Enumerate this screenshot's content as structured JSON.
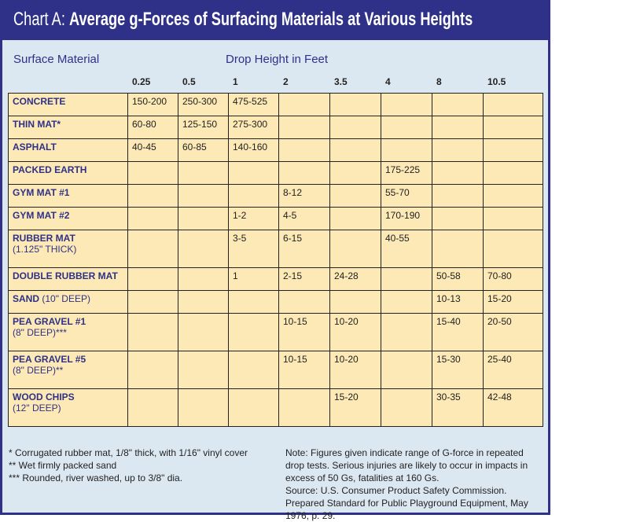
{
  "chart_data": {
    "type": "table",
    "title_prefix": "Chart A:",
    "title": "Average g-Forces of Surfacing Materials at Various Heights",
    "row_header_label": "Surface Material",
    "column_group_label": "Drop Height in Feet",
    "columns": [
      "0.25",
      "0.5",
      "1",
      "2",
      "3.5",
      "4",
      "8",
      "10.5"
    ],
    "rows": [
      {
        "material": "CONCRETE",
        "detail": "",
        "values": [
          "150-200",
          "250-300",
          "475-525",
          "",
          "",
          "",
          "",
          ""
        ]
      },
      {
        "material": "THIN MAT*",
        "detail": "",
        "values": [
          "60-80",
          "125-150",
          "275-300",
          "",
          "",
          "",
          "",
          ""
        ]
      },
      {
        "material": "ASPHALT",
        "detail": "",
        "values": [
          "40-45",
          "60-85",
          "140-160",
          "",
          "",
          "",
          "",
          ""
        ]
      },
      {
        "material": "PACKED EARTH",
        "detail": "",
        "values": [
          "",
          "",
          "",
          "",
          "",
          "175-225",
          "",
          ""
        ]
      },
      {
        "material": "GYM MAT #1",
        "detail": "",
        "values": [
          "",
          "",
          "",
          "8-12",
          "",
          "55-70",
          "",
          ""
        ]
      },
      {
        "material": "GYM MAT #2",
        "detail": "",
        "values": [
          "",
          "",
          "1-2",
          "4-5",
          "",
          "170-190",
          "",
          ""
        ]
      },
      {
        "material": "RUBBER MAT",
        "detail": "(1.125\" THICK)",
        "values": [
          "",
          "",
          "3-5",
          "6-15",
          "",
          "40-55",
          "",
          ""
        ]
      },
      {
        "material": "DOUBLE RUBBER MAT",
        "detail": "",
        "values": [
          "",
          "",
          "1",
          "2-15",
          "24-28",
          "",
          "50-58",
          "70-80"
        ]
      },
      {
        "material": "SAND",
        "detail_inline": "(10\" DEEP)",
        "values": [
          "",
          "",
          "",
          "",
          "",
          "",
          "10-13",
          "15-20"
        ]
      },
      {
        "material": "PEA GRAVEL #1",
        "detail": "(8\" DEEP)***",
        "values": [
          "",
          "",
          "",
          "10-15",
          "10-20",
          "",
          "15-40",
          "20-50"
        ]
      },
      {
        "material": "PEA GRAVEL #5",
        "detail": "(8\" DEEP)**",
        "values": [
          "",
          "",
          "",
          "10-15",
          "10-20",
          "",
          "15-30",
          "25-40"
        ]
      },
      {
        "material": "WOOD CHIPS",
        "detail": "(12\" DEEP)",
        "values": [
          "",
          "",
          "",
          "",
          "15-20",
          "",
          "30-35",
          "42-48"
        ]
      }
    ],
    "footnotes": [
      "* Corrugated rubber mat, 1/8\" thick, with 1/16\" vinyl cover",
      "** Wet firmly packed sand",
      "*** Rounded, river washed, up to 3/8\" dia."
    ],
    "note": "Note: Figures given indicate range of G-force in repeated drop tests. Serious injuries are likely to occur in impacts in excess of 50 Gs, fatalities at 160 Gs.",
    "source": "Source: U.S. Consumer Product Safety Commission. Prepared Standard for Public Playground Equipment, May 1976, p. 29."
  },
  "colors": {
    "brand": "#2e3187",
    "background": "#dce8f1",
    "cell": "#fde9b6"
  }
}
